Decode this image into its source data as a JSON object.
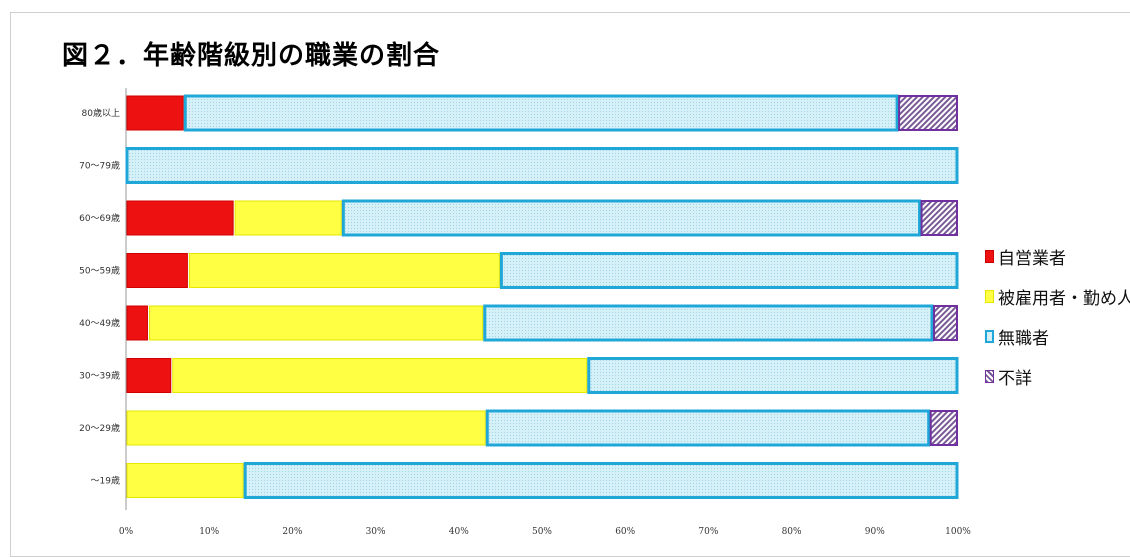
{
  "title": "図２．年齢階級別の職業の割合",
  "chart_data": {
    "type": "bar",
    "orientation": "horizontal",
    "stacked": true,
    "categories": [
      "80歳以上",
      "70～79歳",
      "60～69歳",
      "50～59歳",
      "40～49歳",
      "30～39歳",
      "20～29歳",
      "～19歳"
    ],
    "series": [
      {
        "name": "自営業者",
        "color": "#ee1111",
        "values": [
          7,
          0,
          13,
          7.5,
          2.7,
          5.5,
          0,
          0
        ]
      },
      {
        "name": "被雇用者・勤め人",
        "color": "#ffff44",
        "values": [
          0,
          0,
          13,
          37.5,
          40.3,
          50,
          43.3,
          14.2
        ]
      },
      {
        "name": "無職者",
        "color": "#cfeef5",
        "border": "#1fa7d8",
        "values": [
          85.8,
          100,
          69.5,
          55,
          54,
          44.5,
          53.3,
          85.8
        ]
      },
      {
        "name": "不詳",
        "color": "#ffffff",
        "border": "#7030a0",
        "pattern": "diagonal-hatch",
        "values": [
          7.2,
          0,
          4.5,
          0,
          3,
          0,
          3.4,
          0
        ]
      }
    ],
    "xticks": [
      "0%",
      "10%",
      "20%",
      "30%",
      "40%",
      "50%",
      "60%",
      "70%",
      "80%",
      "90%",
      "100%"
    ],
    "xlim": [
      0,
      100
    ],
    "grid": false,
    "legend_position": "right"
  }
}
